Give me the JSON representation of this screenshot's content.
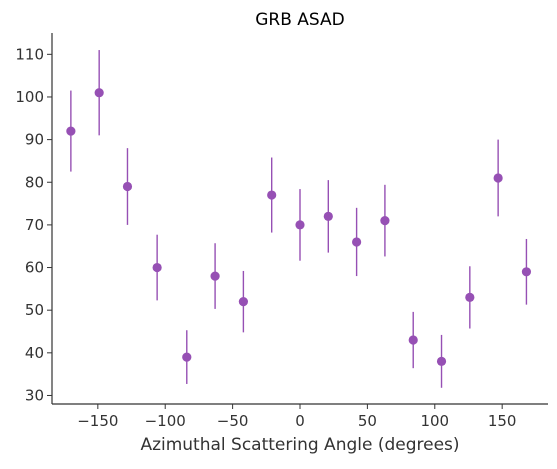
{
  "chart_data": {
    "type": "scatter",
    "title": "GRB ASAD",
    "xlabel": "Azimuthal Scattering Angle (degrees)",
    "ylabel": "",
    "xlim": [
      -184,
      184
    ],
    "ylim": [
      28,
      115
    ],
    "xticks": [
      -150,
      -100,
      -50,
      0,
      50,
      100,
      150
    ],
    "xtick_labels": [
      "−150",
      "−100",
      "−50",
      "0",
      "50",
      "100",
      "150"
    ],
    "yticks": [
      30,
      40,
      50,
      60,
      70,
      80,
      90,
      100,
      110
    ],
    "ytick_labels": [
      "30",
      "40",
      "50",
      "60",
      "70",
      "80",
      "90",
      "100",
      "110"
    ],
    "grid": false,
    "color": "#9650b4",
    "series": [
      {
        "x": [
          -170,
          -149,
          -128,
          -106,
          -84,
          -63,
          -42,
          -21,
          0,
          21,
          42,
          63,
          84,
          105,
          126,
          147,
          168
        ],
        "y": [
          92,
          101,
          79,
          60,
          39,
          58,
          52,
          77,
          70,
          72,
          66,
          71,
          43,
          38,
          53,
          81,
          59
        ],
        "yerr": [
          9.5,
          10,
          9,
          7.7,
          6.3,
          7.7,
          7.2,
          8.8,
          8.4,
          8.5,
          8,
          8.4,
          6.6,
          6.2,
          7.3,
          9,
          7.7
        ]
      }
    ]
  }
}
